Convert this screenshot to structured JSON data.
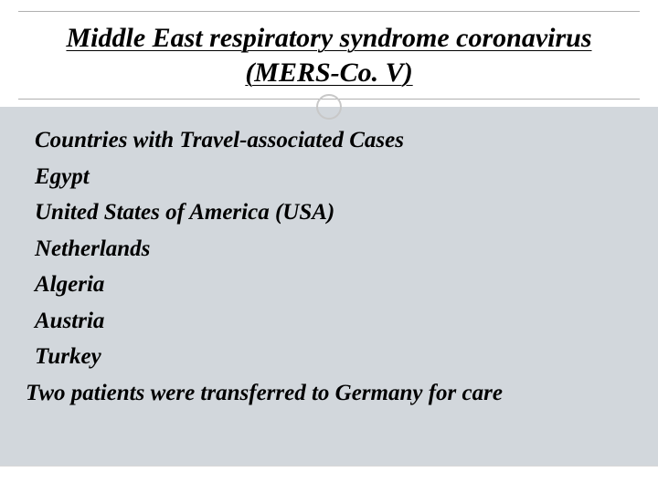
{
  "slide": {
    "title": "Middle East respiratory syndrome coronavirus (MERS-Co. V)",
    "heading": "Countries with Travel-associated Cases",
    "countries": [
      "Egypt",
      "United States of America (USA)",
      "Netherlands",
      "Algeria",
      "Austria",
      "Turkey"
    ],
    "note": "Two patients were transferred to Germany for care"
  },
  "styling": {
    "background_color": "#ffffff",
    "content_background": "#d2d7dc",
    "title_color": "#000000",
    "body_color": "#000000",
    "divider_color": "#b0b0b0",
    "circle_border_color": "#c8c8c8",
    "title_fontsize": 30,
    "body_fontsize": 25,
    "font_style": "italic",
    "font_weight": "bold",
    "font_family": "Georgia"
  }
}
